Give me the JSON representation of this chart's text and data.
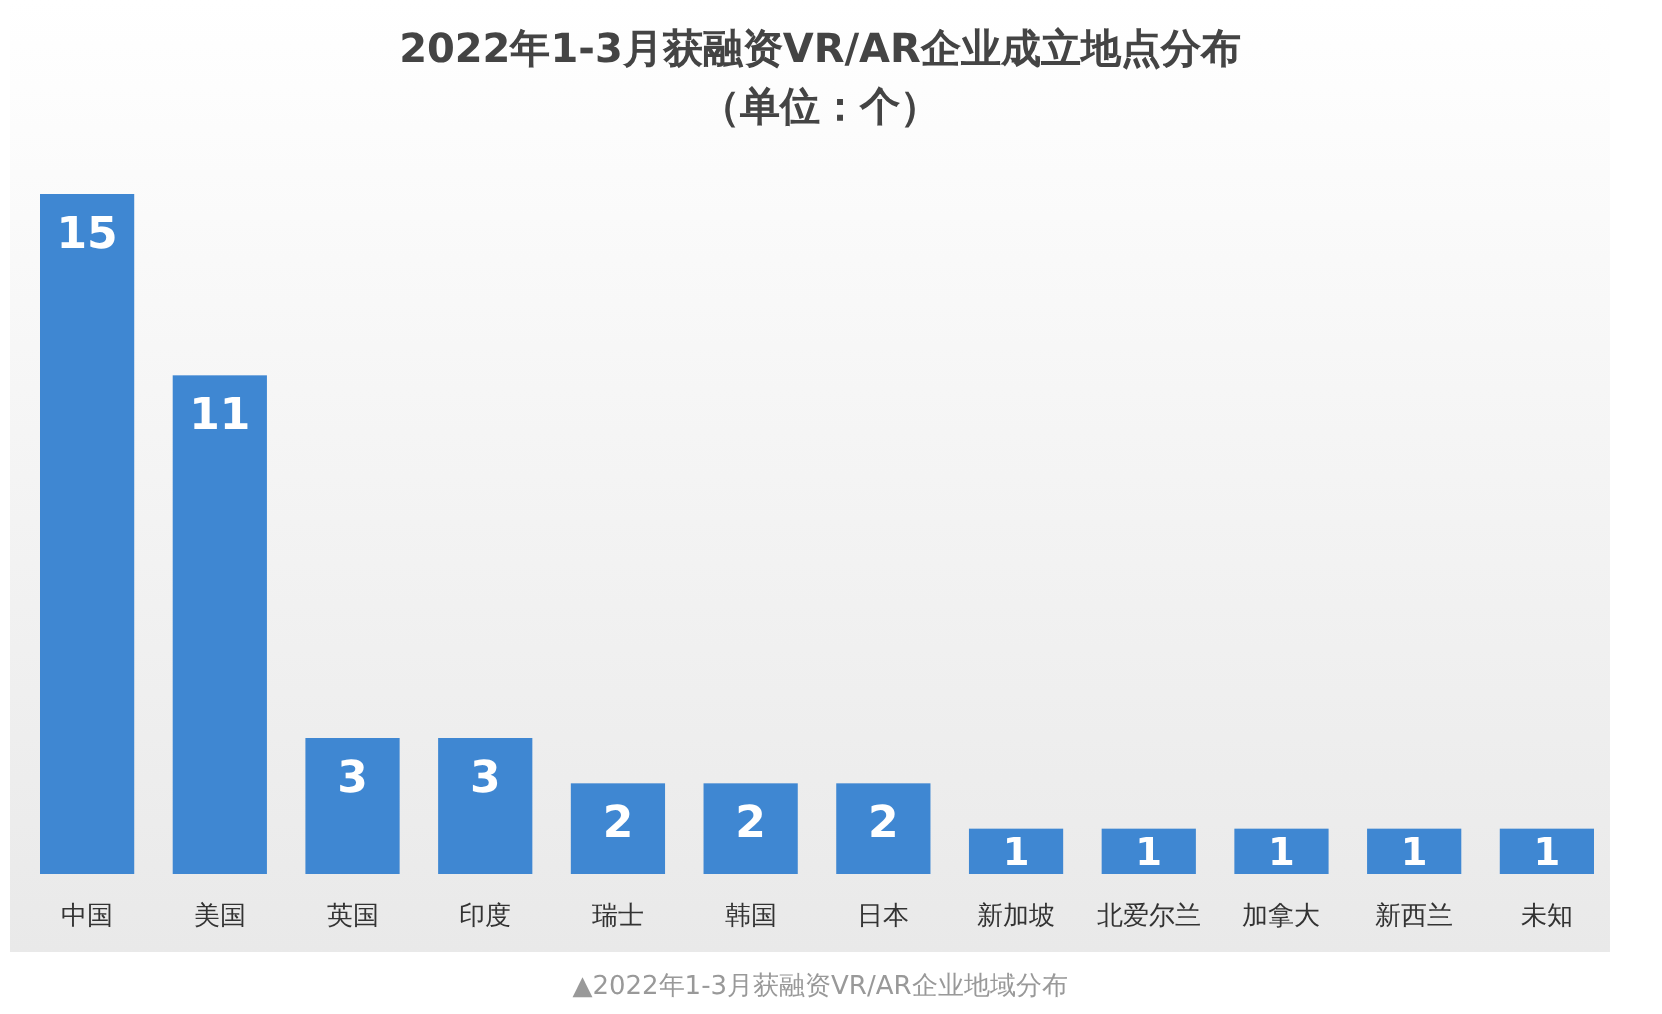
{
  "chart_data": {
    "type": "bar",
    "title": "2022年1-3月获融资VR/AR企业成立地点分布",
    "subtitle": "（单位：个）",
    "categories": [
      "中国",
      "美国",
      "英国",
      "印度",
      "瑞士",
      "韩国",
      "日本",
      "新加坡",
      "北爱尔兰",
      "加拿大",
      "新西兰",
      "未知"
    ],
    "values": [
      15,
      11,
      3,
      3,
      2,
      2,
      2,
      1,
      1,
      1,
      1,
      1
    ],
    "color": "#3f87d2",
    "data_labels": true,
    "annotations": [
      "▲2022年1-3月获融资VR/AR企业地域分布"
    ]
  }
}
